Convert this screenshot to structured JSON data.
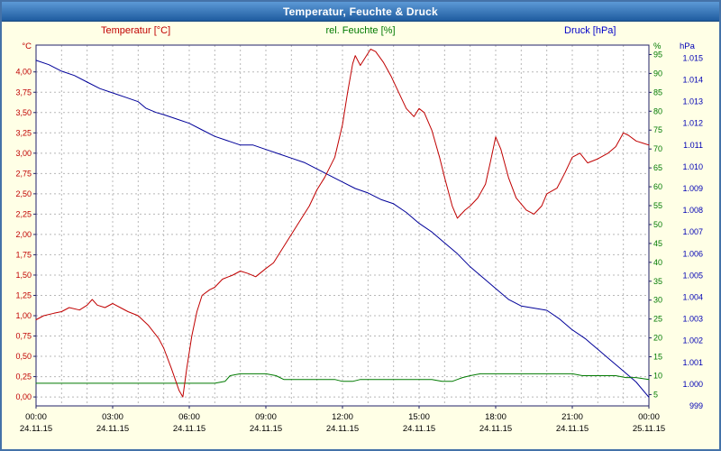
{
  "window": {
    "title": "Temperatur, Feuchte & Druck"
  },
  "legend": {
    "temperature": "Temperatur [°C]",
    "humidity": "rel. Feuchte [%]",
    "pressure": "Druck [hPa]"
  },
  "colors": {
    "frame": "#4472a8",
    "background": "#ffffe6",
    "titlebar": "#2e6db4",
    "temperature": "#c00000",
    "humidity": "#007a00",
    "pressure": "#000099",
    "grid": "#b8b8b8",
    "plot_border": "#22226a",
    "time_text": "#000000"
  },
  "chart_data": {
    "type": "line",
    "title": "Temperatur, Feuchte & Druck",
    "x_axis": {
      "range_hours": [
        0,
        24
      ],
      "tick_hours": [
        0,
        3,
        6,
        9,
        12,
        15,
        18,
        21,
        24
      ],
      "tick_labels": [
        "00:00",
        "03:00",
        "06:00",
        "09:00",
        "12:00",
        "15:00",
        "18:00",
        "21:00",
        "00:00"
      ],
      "date_labels": [
        "24.11.15",
        "24.11.15",
        "24.11.15",
        "24.11.15",
        "24.11.15",
        "24.11.15",
        "24.11.15",
        "24.11.15",
        "25.11.15"
      ]
    },
    "axes": {
      "temperature": {
        "unit": "°C",
        "color": "#c00000",
        "range": [
          -0.11,
          4.33
        ],
        "tick_values": [
          4.0,
          3.75,
          3.5,
          3.25,
          3.0,
          2.75,
          2.5,
          2.25,
          2.0,
          1.75,
          1.5,
          1.25,
          1.0,
          0.75,
          0.5,
          0.25,
          0.0
        ],
        "tick_labels": [
          "4,00",
          "3,75",
          "3,50",
          "3,25",
          "3,00",
          "2,75",
          "2,50",
          "2,25",
          "2,00",
          "1,75",
          "1,50",
          "1,25",
          "1,00",
          "0,75",
          "0,50",
          "0,25",
          "0,00"
        ]
      },
      "humidity": {
        "unit": "%",
        "color": "#007a00",
        "range": [
          2,
          97.5
        ],
        "tick_values": [
          95,
          90,
          85,
          80,
          75,
          70,
          65,
          60,
          55,
          50,
          45,
          40,
          35,
          30,
          25,
          20,
          15,
          10,
          5
        ],
        "tick_labels": [
          "95",
          "90",
          "85",
          "80",
          "75",
          "70",
          "65",
          "60",
          "55",
          "50",
          "45",
          "40",
          "35",
          "30",
          "25",
          "20",
          "15",
          "10",
          "5"
        ]
      },
      "pressure": {
        "unit": "hPa",
        "color": "#0000b4",
        "range": [
          999,
          1015.6
        ],
        "tick_values": [
          1015,
          1014,
          1013,
          1012,
          1011,
          1010,
          1009,
          1008,
          1007,
          1006,
          1005,
          1004,
          1003,
          1002,
          1001,
          1000,
          999
        ],
        "tick_labels": [
          "1.015",
          "1.014",
          "1.013",
          "1.012",
          "1.011",
          "1.010",
          "1.009",
          "1.008",
          "1.007",
          "1.006",
          "1.005",
          "1.004",
          "1.003",
          "1.002",
          "1.001",
          "1.000",
          "999"
        ]
      }
    },
    "series": [
      {
        "name": "Temperatur",
        "axis": "temperature",
        "color": "#c00000",
        "points": [
          [
            0,
            0.95
          ],
          [
            0.3,
            1.0
          ],
          [
            0.7,
            1.03
          ],
          [
            1,
            1.05
          ],
          [
            1.3,
            1.1
          ],
          [
            1.7,
            1.07
          ],
          [
            2,
            1.13
          ],
          [
            2.2,
            1.2
          ],
          [
            2.4,
            1.13
          ],
          [
            2.7,
            1.1
          ],
          [
            3,
            1.15
          ],
          [
            3.3,
            1.1
          ],
          [
            3.6,
            1.05
          ],
          [
            4,
            1.0
          ],
          [
            4.4,
            0.88
          ],
          [
            4.8,
            0.72
          ],
          [
            5,
            0.6
          ],
          [
            5.3,
            0.35
          ],
          [
            5.6,
            0.08
          ],
          [
            5.75,
            0.0
          ],
          [
            5.9,
            0.35
          ],
          [
            6.1,
            0.75
          ],
          [
            6.3,
            1.05
          ],
          [
            6.5,
            1.25
          ],
          [
            6.8,
            1.32
          ],
          [
            7,
            1.35
          ],
          [
            7.3,
            1.45
          ],
          [
            7.7,
            1.5
          ],
          [
            8,
            1.55
          ],
          [
            8.3,
            1.52
          ],
          [
            8.6,
            1.48
          ],
          [
            9,
            1.58
          ],
          [
            9.3,
            1.65
          ],
          [
            9.7,
            1.85
          ],
          [
            10,
            2.0
          ],
          [
            10.3,
            2.15
          ],
          [
            10.7,
            2.35
          ],
          [
            11,
            2.55
          ],
          [
            11.3,
            2.7
          ],
          [
            11.7,
            2.95
          ],
          [
            12,
            3.35
          ],
          [
            12.2,
            3.75
          ],
          [
            12.4,
            4.1
          ],
          [
            12.5,
            4.2
          ],
          [
            12.7,
            4.08
          ],
          [
            12.9,
            4.18
          ],
          [
            13.1,
            4.28
          ],
          [
            13.3,
            4.25
          ],
          [
            13.6,
            4.12
          ],
          [
            13.9,
            3.95
          ],
          [
            14.2,
            3.75
          ],
          [
            14.5,
            3.55
          ],
          [
            14.8,
            3.45
          ],
          [
            15,
            3.55
          ],
          [
            15.2,
            3.5
          ],
          [
            15.5,
            3.28
          ],
          [
            15.8,
            2.95
          ],
          [
            16,
            2.7
          ],
          [
            16.3,
            2.35
          ],
          [
            16.5,
            2.2
          ],
          [
            16.8,
            2.3
          ],
          [
            17,
            2.35
          ],
          [
            17.3,
            2.45
          ],
          [
            17.6,
            2.62
          ],
          [
            17.8,
            2.9
          ],
          [
            18,
            3.2
          ],
          [
            18.2,
            3.05
          ],
          [
            18.5,
            2.7
          ],
          [
            18.8,
            2.45
          ],
          [
            19.2,
            2.3
          ],
          [
            19.5,
            2.25
          ],
          [
            19.8,
            2.35
          ],
          [
            20,
            2.5
          ],
          [
            20.4,
            2.57
          ],
          [
            20.7,
            2.75
          ],
          [
            21,
            2.95
          ],
          [
            21.3,
            3.0
          ],
          [
            21.6,
            2.88
          ],
          [
            22,
            2.93
          ],
          [
            22.4,
            3.0
          ],
          [
            22.7,
            3.08
          ],
          [
            23,
            3.25
          ],
          [
            23.2,
            3.22
          ],
          [
            23.5,
            3.15
          ],
          [
            23.8,
            3.12
          ],
          [
            24,
            3.1
          ]
        ]
      },
      {
        "name": "rel. Feuchte",
        "axis": "humidity",
        "color": "#007a00",
        "points": [
          [
            0,
            8
          ],
          [
            1,
            8
          ],
          [
            2,
            8
          ],
          [
            3,
            8
          ],
          [
            4,
            8
          ],
          [
            5,
            8
          ],
          [
            6,
            8
          ],
          [
            7,
            8
          ],
          [
            7.4,
            8.5
          ],
          [
            7.6,
            10
          ],
          [
            8,
            10.5
          ],
          [
            8.6,
            10.5
          ],
          [
            9,
            10.5
          ],
          [
            9.4,
            10
          ],
          [
            9.7,
            9
          ],
          [
            10,
            9
          ],
          [
            10.5,
            9
          ],
          [
            11,
            9
          ],
          [
            11.7,
            9
          ],
          [
            12,
            8.5
          ],
          [
            12.4,
            8.5
          ],
          [
            12.7,
            9
          ],
          [
            13,
            9
          ],
          [
            13.5,
            9
          ],
          [
            14,
            9
          ],
          [
            14.5,
            9
          ],
          [
            15,
            9
          ],
          [
            15.5,
            9
          ],
          [
            15.9,
            8.5
          ],
          [
            16.3,
            8.5
          ],
          [
            16.7,
            9.5
          ],
          [
            17,
            10
          ],
          [
            17.4,
            10.5
          ],
          [
            18,
            10.5
          ],
          [
            18.5,
            10.5
          ],
          [
            19,
            10.5
          ],
          [
            19.5,
            10.5
          ],
          [
            20,
            10.5
          ],
          [
            20.5,
            10.5
          ],
          [
            21,
            10.5
          ],
          [
            21.4,
            10
          ],
          [
            22,
            10
          ],
          [
            22.7,
            10
          ],
          [
            23.1,
            9.5
          ],
          [
            23.5,
            9.5
          ],
          [
            24,
            9
          ]
        ]
      },
      {
        "name": "Druck",
        "axis": "pressure",
        "color": "#000099",
        "points": [
          [
            0,
            1014.9
          ],
          [
            0.5,
            1014.7
          ],
          [
            1,
            1014.4
          ],
          [
            1.5,
            1014.2
          ],
          [
            2,
            1013.9
          ],
          [
            2.5,
            1013.6
          ],
          [
            3,
            1013.4
          ],
          [
            3.5,
            1013.2
          ],
          [
            4,
            1013.0
          ],
          [
            4.3,
            1012.7
          ],
          [
            4.7,
            1012.5
          ],
          [
            5,
            1012.4
          ],
          [
            5.5,
            1012.2
          ],
          [
            6,
            1012.0
          ],
          [
            6.5,
            1011.7
          ],
          [
            7,
            1011.4
          ],
          [
            7.5,
            1011.2
          ],
          [
            8,
            1011.0
          ],
          [
            8.5,
            1011.0
          ],
          [
            9,
            1010.8
          ],
          [
            9.5,
            1010.6
          ],
          [
            10,
            1010.4
          ],
          [
            10.5,
            1010.2
          ],
          [
            11,
            1009.9
          ],
          [
            11.5,
            1009.6
          ],
          [
            12,
            1009.3
          ],
          [
            12.5,
            1009.0
          ],
          [
            13,
            1008.8
          ],
          [
            13.5,
            1008.5
          ],
          [
            14,
            1008.3
          ],
          [
            14.5,
            1007.9
          ],
          [
            15,
            1007.4
          ],
          [
            15.5,
            1007.0
          ],
          [
            16,
            1006.5
          ],
          [
            16.5,
            1006.0
          ],
          [
            17,
            1005.4
          ],
          [
            17.5,
            1004.9
          ],
          [
            18,
            1004.4
          ],
          [
            18.5,
            1003.9
          ],
          [
            19,
            1003.6
          ],
          [
            19.5,
            1003.5
          ],
          [
            20,
            1003.4
          ],
          [
            20.5,
            1003.0
          ],
          [
            21,
            1002.5
          ],
          [
            21.5,
            1002.1
          ],
          [
            22,
            1001.6
          ],
          [
            22.5,
            1001.1
          ],
          [
            23,
            1000.6
          ],
          [
            23.5,
            1000.1
          ],
          [
            24,
            999.4
          ]
        ]
      }
    ]
  }
}
